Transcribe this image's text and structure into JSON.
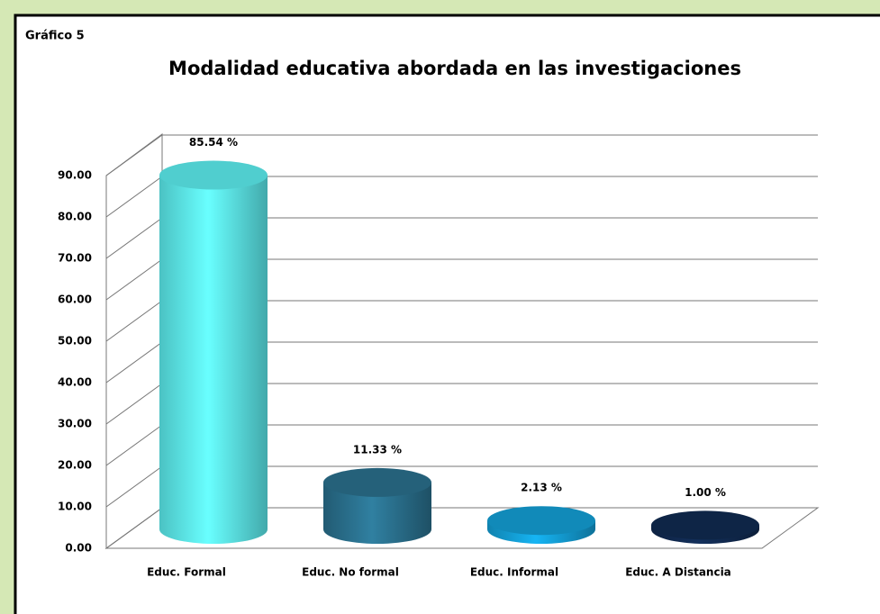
{
  "chart_data": {
    "type": "bar",
    "figure_label": "Gráfico 5",
    "title": "Modalidad educativa abordada en las investigaciones",
    "categories": [
      "Educ. Formal",
      "Educ. No formal",
      "Educ. Informal",
      "Educ. A Distancia"
    ],
    "values": [
      85.54,
      11.33,
      2.13,
      1.0
    ],
    "value_labels": [
      "85.54 %",
      "11.33 %",
      "2.13 %",
      "1.00 %"
    ],
    "colors": [
      "#5ef2f4",
      "#2b7290",
      "#14a2da",
      "#112b52"
    ],
    "ylim": [
      0,
      90
    ],
    "yticks": [
      {
        "value": 0,
        "label": "0.00"
      },
      {
        "value": 10,
        "label": "10.00"
      },
      {
        "value": 20,
        "label": "20.00"
      },
      {
        "value": 30,
        "label": "30.00"
      },
      {
        "value": 40,
        "label": "40.00"
      },
      {
        "value": 50,
        "label": "50.00"
      },
      {
        "value": 60,
        "label": "60.00"
      },
      {
        "value": 70,
        "label": "70.00"
      },
      {
        "value": 80,
        "label": "80.00"
      },
      {
        "value": 90,
        "label": "90.00"
      }
    ],
    "grid": true
  }
}
